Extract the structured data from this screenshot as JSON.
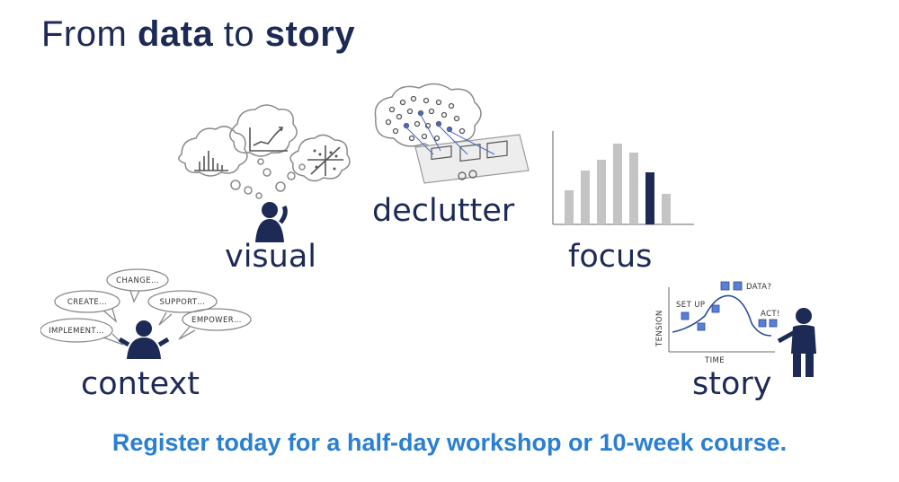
{
  "title": {
    "prefix": "From ",
    "word1": "data",
    "middle": " to ",
    "word2": "story"
  },
  "steps": {
    "visual": "visual",
    "declutter": "declutter",
    "focus": "focus",
    "context": "context",
    "story": "story"
  },
  "context_bubbles": [
    "CHANGE…",
    "CREATE…",
    "SUPPORT…",
    "IMPLEMENT…",
    "EMPOWER…"
  ],
  "story_sketch": {
    "yaxis": "TENSION",
    "xaxis": "TIME",
    "set_up": "SET UP",
    "data": "DATA?",
    "act": "ACT!"
  },
  "cta": "Register today for a half-day workshop or 10-week course.",
  "colors": {
    "navy": "#1d2a55",
    "accent_blue": "#2a7fd1",
    "gray": "#c4c4c4"
  }
}
